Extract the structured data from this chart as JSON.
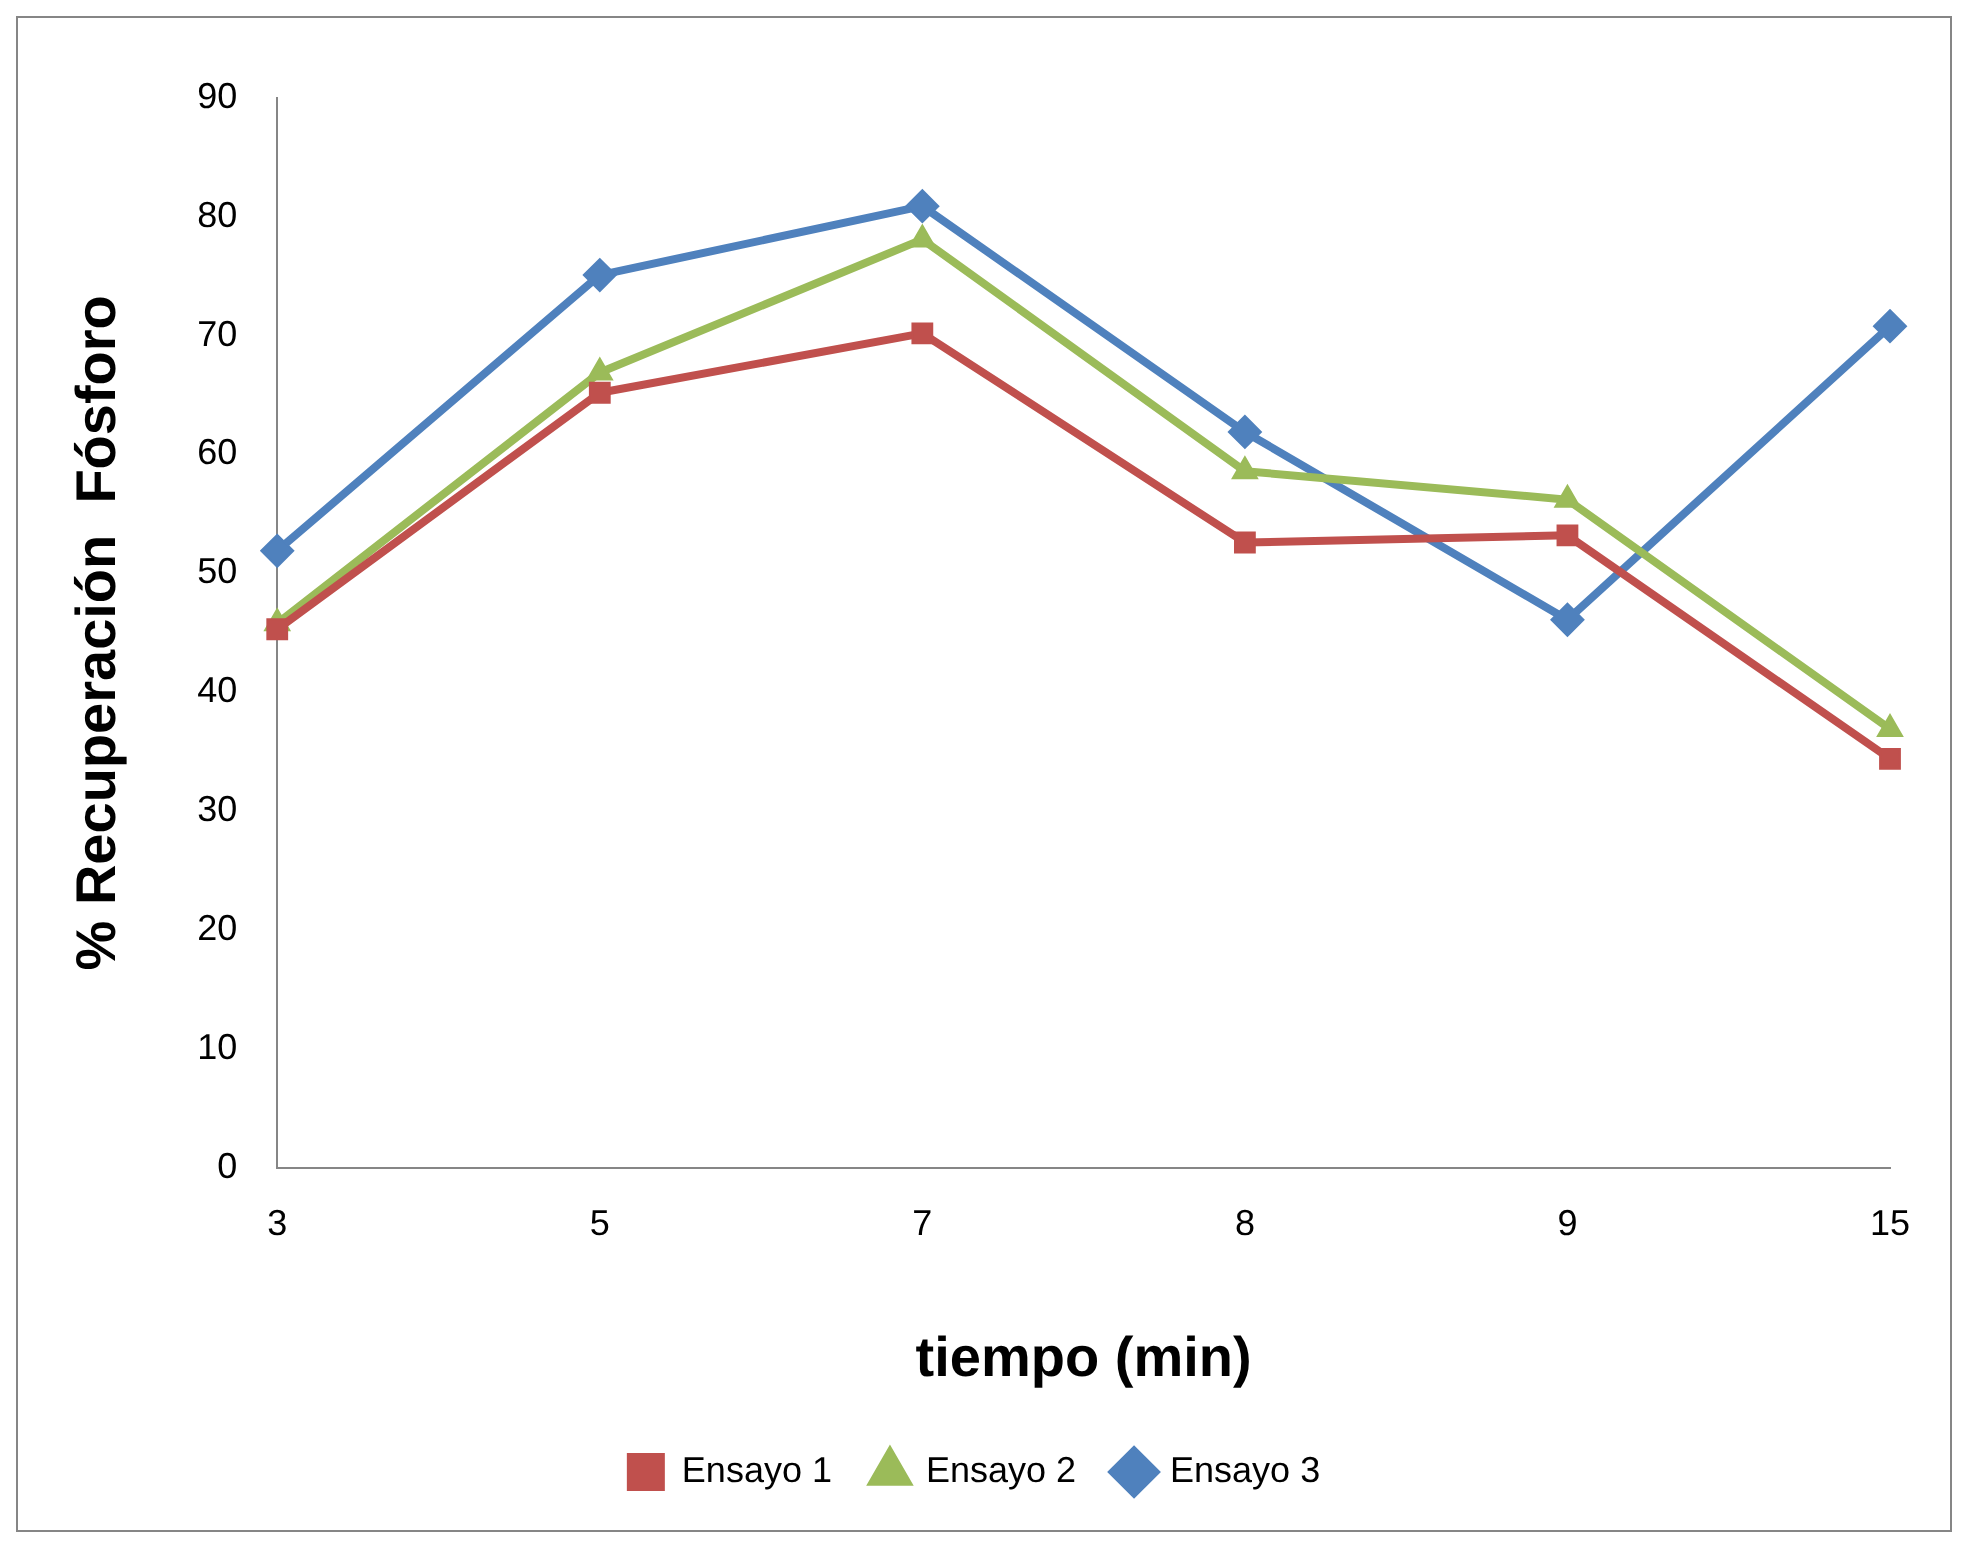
{
  "chart_data": {
    "type": "line",
    "xlabel": "tiempo (min)",
    "ylabel": "% Recuperación  Fósforo",
    "categories": [
      "3",
      "5",
      "7",
      "8",
      "9",
      "15"
    ],
    "series": [
      {
        "name": "Ensayo 1",
        "color": "#c0504d",
        "marker": "square",
        "values": [
          45.3,
          65.2,
          70.2,
          52.6,
          53.2,
          34.4
        ]
      },
      {
        "name": "Ensayo 2",
        "color": "#9bbb59",
        "marker": "triangle",
        "values": [
          45.8,
          66.9,
          78.1,
          58.6,
          56.2,
          36.9
        ]
      },
      {
        "name": "Ensayo 3",
        "color": "#4f81bd",
        "marker": "diamond",
        "values": [
          51.9,
          75.1,
          80.9,
          61.9,
          46.1,
          70.8
        ]
      }
    ],
    "ylim": [
      0,
      90
    ],
    "yticks": [
      0,
      10,
      20,
      30,
      40,
      50,
      60,
      70,
      80,
      90
    ],
    "grid": false,
    "legend": "bottom"
  }
}
